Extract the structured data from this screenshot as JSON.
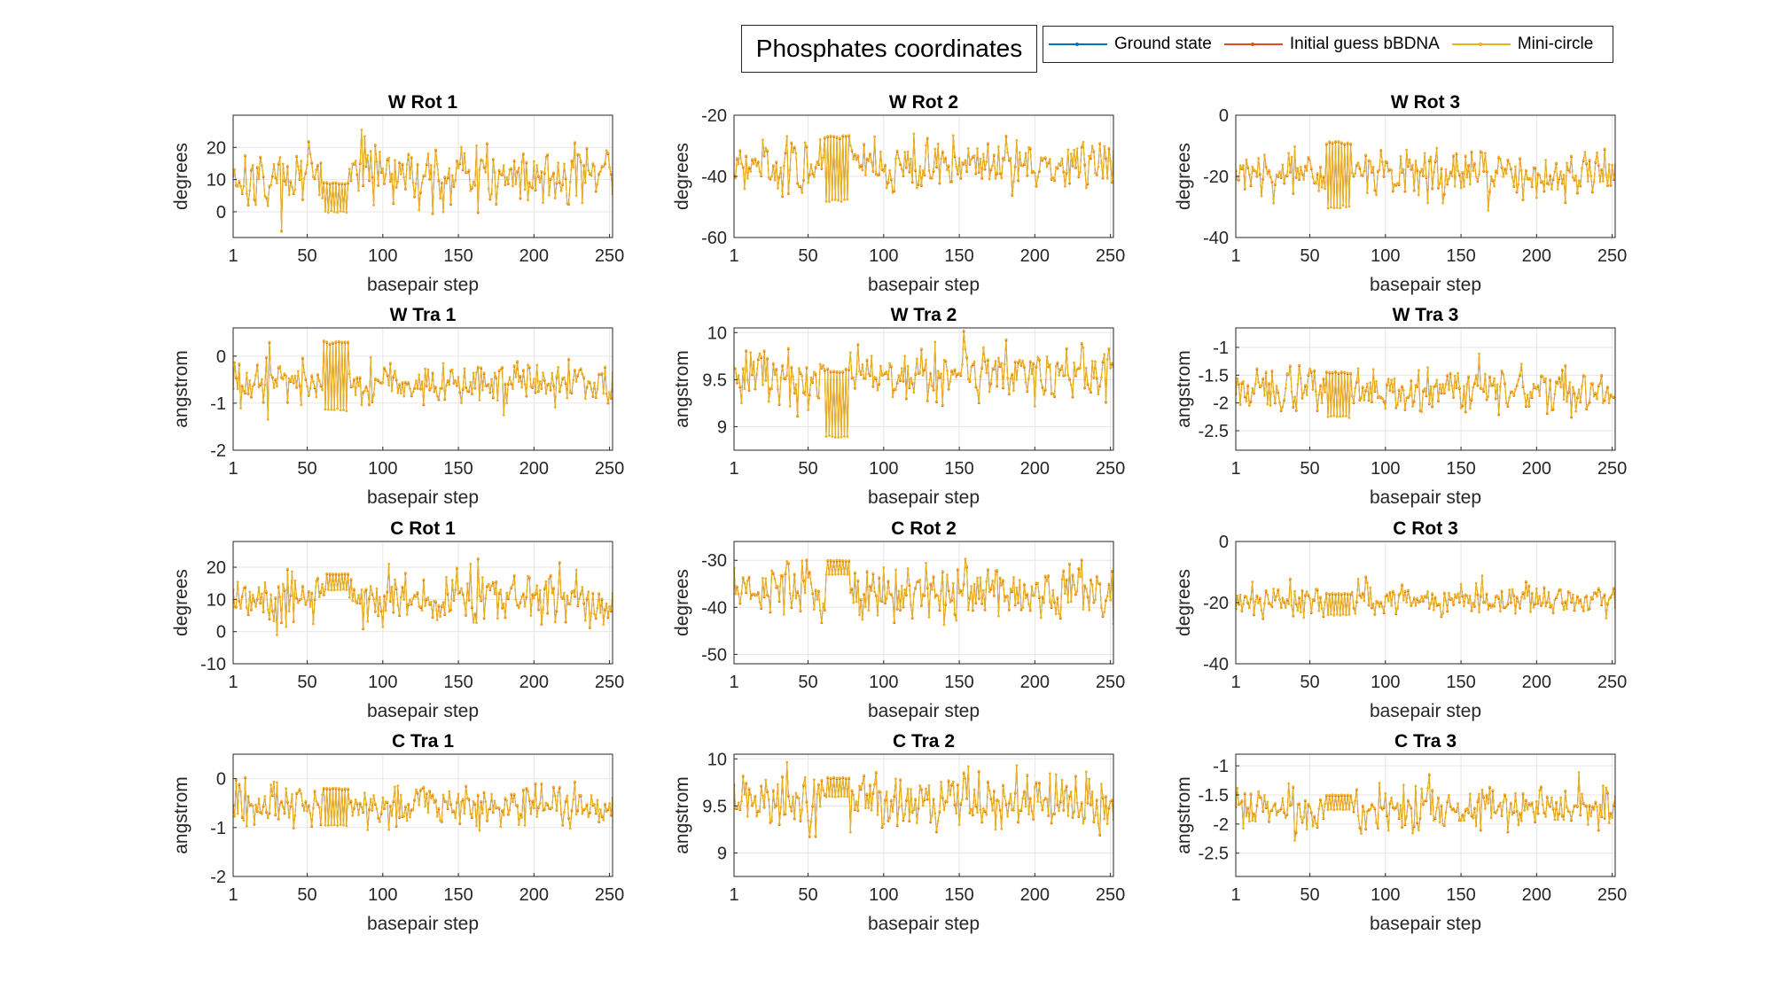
{
  "figure": {
    "title": "Phosphates coordinates",
    "legend": [
      {
        "name": "Ground state",
        "color": "#0072BD"
      },
      {
        "name": "Initial guess bBDNA",
        "color": "#D95319"
      },
      {
        "name": "Mini-circle",
        "color": "#EDB120"
      }
    ]
  },
  "chart_data": [
    {
      "type": "line",
      "title": "W Rot 1",
      "xlabel": "basepair step",
      "ylabel": "degrees",
      "xlim": [
        1,
        252
      ],
      "ylim": [
        -8,
        30
      ],
      "xticks": [
        1,
        50,
        100,
        150,
        200,
        250
      ],
      "yticks": [
        0,
        10,
        20
      ],
      "grid": true,
      "x_range": [
        1,
        252
      ],
      "approx_mean": 11,
      "approx_spread": 9,
      "flat_segment": {
        "x": [
          61,
          77
        ],
        "values": [
          0,
          9
        ]
      }
    },
    {
      "type": "line",
      "title": "W Rot 2",
      "xlabel": "basepair step",
      "ylabel": "degrees",
      "xlim": [
        1,
        252
      ],
      "ylim": [
        -60,
        -20
      ],
      "xticks": [
        1,
        50,
        100,
        150,
        200,
        250
      ],
      "yticks": [
        -60,
        -40,
        -20
      ],
      "grid": true,
      "x_range": [
        1,
        252
      ],
      "approx_mean": -36,
      "approx_spread": 8,
      "flat_segment": {
        "x": [
          61,
          77
        ],
        "values": [
          -48,
          -27
        ]
      }
    },
    {
      "type": "line",
      "title": "W Rot 3",
      "xlabel": "basepair step",
      "ylabel": "degrees",
      "xlim": [
        1,
        252
      ],
      "ylim": [
        -40,
        0
      ],
      "xticks": [
        1,
        50,
        100,
        150,
        200,
        250
      ],
      "yticks": [
        -40,
        -20,
        0
      ],
      "grid": true,
      "x_range": [
        1,
        252
      ],
      "approx_mean": -19,
      "approx_spread": 7,
      "flat_segment": {
        "x": [
          61,
          77
        ],
        "values": [
          -30,
          -9
        ]
      }
    },
    {
      "type": "line",
      "title": "W Tra 1",
      "xlabel": "basepair step",
      "ylabel": "angstrom",
      "xlim": [
        1,
        252
      ],
      "ylim": [
        -2,
        0.6
      ],
      "xticks": [
        1,
        50,
        100,
        150,
        200,
        250
      ],
      "yticks": [
        -2,
        -1,
        0
      ],
      "grid": true,
      "x_range": [
        1,
        252
      ],
      "approx_mean": -0.55,
      "approx_spread": 0.4,
      "flat_segment": {
        "x": [
          61,
          77
        ],
        "values": [
          -1.15,
          0.3
        ]
      }
    },
    {
      "type": "line",
      "title": "W Tra 2",
      "xlabel": "basepair step",
      "ylabel": "angstrom",
      "xlim": [
        1,
        252
      ],
      "ylim": [
        8.75,
        10.05
      ],
      "xticks": [
        1,
        50,
        100,
        150,
        200,
        250
      ],
      "yticks": [
        9,
        9.5,
        10
      ],
      "grid": true,
      "x_range": [
        1,
        252
      ],
      "approx_mean": 9.55,
      "approx_spread": 0.28,
      "flat_segment": {
        "x": [
          61,
          77
        ],
        "values": [
          8.9,
          9.6
        ]
      }
    },
    {
      "type": "line",
      "title": "W Tra 3",
      "xlabel": "basepair step",
      "ylabel": "angstrom",
      "xlim": [
        1,
        252
      ],
      "ylim": [
        -2.85,
        -0.65
      ],
      "xticks": [
        1,
        50,
        100,
        150,
        200,
        250
      ],
      "yticks": [
        -2.5,
        -2,
        -1.5,
        -1
      ],
      "grid": true,
      "x_range": [
        1,
        252
      ],
      "approx_mean": -1.75,
      "approx_spread": 0.38,
      "flat_segment": {
        "x": [
          61,
          77
        ],
        "values": [
          -2.25,
          -1.45
        ]
      }
    },
    {
      "type": "line",
      "title": "C Rot 1",
      "xlabel": "basepair step",
      "ylabel": "degrees",
      "xlim": [
        1,
        252
      ],
      "ylim": [
        -10,
        28
      ],
      "xticks": [
        1,
        50,
        100,
        150,
        200,
        250
      ],
      "yticks": [
        -10,
        0,
        10,
        20
      ],
      "grid": true,
      "x_range": [
        1,
        252
      ],
      "approx_mean": 10,
      "approx_spread": 8,
      "flat_segment": {
        "x": [
          62,
          77
        ],
        "values": [
          13,
          18
        ]
      }
    },
    {
      "type": "line",
      "title": "C Rot 2",
      "xlabel": "basepair step",
      "ylabel": "degrees",
      "xlim": [
        1,
        252
      ],
      "ylim": [
        -52,
        -26
      ],
      "xticks": [
        1,
        50,
        100,
        150,
        200,
        250
      ],
      "yticks": [
        -50,
        -40,
        -30
      ],
      "grid": true,
      "x_range": [
        1,
        252
      ],
      "approx_mean": -37,
      "approx_spread": 5.5,
      "flat_segment": {
        "x": [
          62,
          77
        ],
        "values": [
          -33,
          -30
        ]
      }
    },
    {
      "type": "line",
      "title": "C Rot 3",
      "xlabel": "basepair step",
      "ylabel": "degrees",
      "xlim": [
        1,
        252
      ],
      "ylim": [
        -40,
        0
      ],
      "xticks": [
        1,
        50,
        100,
        150,
        200,
        250
      ],
      "yticks": [
        -40,
        -20,
        0
      ],
      "grid": true,
      "x_range": [
        1,
        252
      ],
      "approx_mean": -19,
      "approx_spread": 5,
      "flat_segment": {
        "x": [
          61,
          77
        ],
        "values": [
          -24,
          -17
        ]
      }
    },
    {
      "type": "line",
      "title": "C Tra 1",
      "xlabel": "basepair step",
      "ylabel": "angstrom",
      "xlim": [
        1,
        252
      ],
      "ylim": [
        -2,
        0.5
      ],
      "xticks": [
        1,
        50,
        100,
        150,
        200,
        250
      ],
      "yticks": [
        -2,
        -1,
        0
      ],
      "grid": true,
      "x_range": [
        1,
        252
      ],
      "approx_mean": -0.55,
      "approx_spread": 0.4,
      "flat_segment": {
        "x": [
          61,
          77
        ],
        "values": [
          -0.95,
          -0.2
        ]
      }
    },
    {
      "type": "line",
      "title": "C Tra 2",
      "xlabel": "basepair step",
      "ylabel": "angstrom",
      "xlim": [
        1,
        252
      ],
      "ylim": [
        8.75,
        10.05
      ],
      "xticks": [
        1,
        50,
        100,
        150,
        200,
        250
      ],
      "yticks": [
        9,
        9.5,
        10
      ],
      "grid": true,
      "x_range": [
        1,
        252
      ],
      "approx_mean": 9.55,
      "approx_spread": 0.28,
      "flat_segment": {
        "x": [
          62,
          77
        ],
        "values": [
          9.6,
          9.8
        ]
      }
    },
    {
      "type": "line",
      "title": "C Tra 3",
      "xlabel": "basepair step",
      "ylabel": "angstrom",
      "xlim": [
        1,
        252
      ],
      "ylim": [
        -2.9,
        -0.8
      ],
      "xticks": [
        1,
        50,
        100,
        150,
        200,
        250
      ],
      "yticks": [
        -2.5,
        -2,
        -1.5,
        -1
      ],
      "grid": true,
      "x_range": [
        1,
        252
      ],
      "approx_mean": -1.75,
      "approx_spread": 0.35,
      "flat_segment": {
        "x": [
          61,
          77
        ],
        "values": [
          -1.75,
          -1.5
        ]
      }
    }
  ]
}
